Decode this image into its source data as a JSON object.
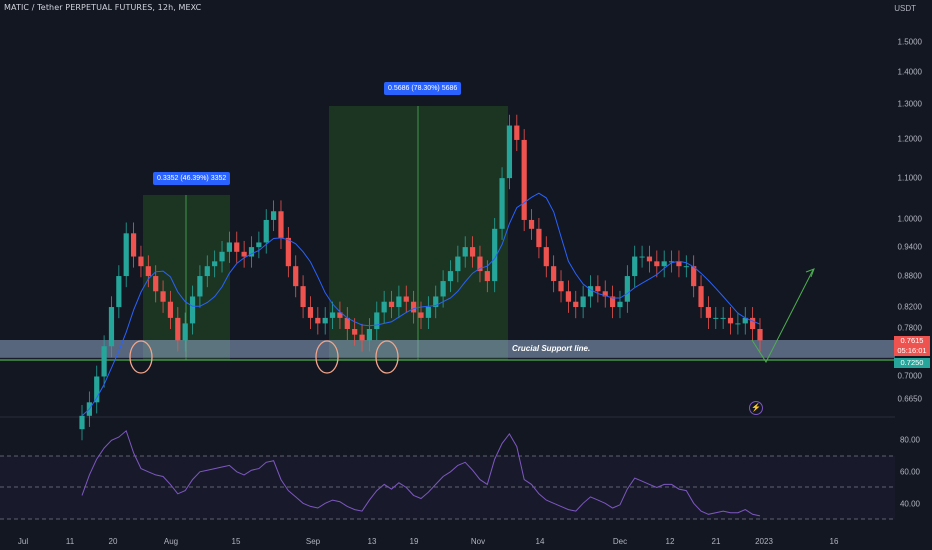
{
  "header": {
    "title": "MATIC / Tether PERPETUAL FUTURES, 12h, MEXC",
    "currency": "USDT"
  },
  "price_axis": {
    "labels": [
      "1.5000",
      "1.4000",
      "1.3000",
      "1.2000",
      "1.1000",
      "1.0000",
      "0.9400",
      "0.8800",
      "0.8200",
      "0.7800",
      "0.7000",
      "0.6650"
    ],
    "current_price": "0.7615",
    "countdown": "05:16:01",
    "support_price": "0.7250"
  },
  "time_axis": {
    "labels": [
      "Jul",
      "11",
      "20",
      "Aug",
      "15",
      "Sep",
      "13",
      "19",
      "Nov",
      "14",
      "Dec",
      "12",
      "21",
      "2023",
      "16"
    ]
  },
  "annotations": {
    "measure_1": "0.3352 (46.39%) 3352",
    "measure_2": "0.5686 (78.30%) 5686",
    "support_line": "Crucial Support line."
  },
  "rsi_axis": {
    "labels": [
      "80.00",
      "60.00",
      "40.00"
    ]
  },
  "colors": {
    "background": "#131722",
    "up": "#26a69a",
    "down": "#ef5350",
    "ma": "#2962ff",
    "rsi": "#7e57c2",
    "support_zone": "#8fa8c8",
    "measure_zone": "#1e3b22",
    "circle": "#f4a58a",
    "projection": "#4caf50"
  },
  "chart_data": [
    {
      "type": "candlestick",
      "title": "MATIC / Tether PERPETUAL FUTURES, 12h, MEXC",
      "ylim": [
        0.64,
        1.6
      ],
      "yscale": "log",
      "x_ticks": [
        "Jul",
        "11",
        "20",
        "Aug",
        "15",
        "Sep",
        "13",
        "19",
        "Nov",
        "14",
        "Dec",
        "12",
        "21",
        "2023",
        "16"
      ],
      "close_series": [
        0.64,
        0.66,
        0.7,
        0.75,
        0.82,
        0.88,
        0.97,
        0.92,
        0.9,
        0.88,
        0.85,
        0.83,
        0.8,
        0.76,
        0.79,
        0.84,
        0.88,
        0.9,
        0.91,
        0.93,
        0.95,
        0.93,
        0.92,
        0.94,
        0.95,
        1.0,
        1.02,
        0.96,
        0.9,
        0.86,
        0.82,
        0.8,
        0.79,
        0.8,
        0.81,
        0.8,
        0.78,
        0.77,
        0.76,
        0.78,
        0.81,
        0.83,
        0.82,
        0.84,
        0.83,
        0.81,
        0.8,
        0.82,
        0.84,
        0.87,
        0.89,
        0.92,
        0.94,
        0.92,
        0.89,
        0.87,
        0.98,
        1.1,
        1.24,
        1.2,
        1.0,
        0.98,
        0.94,
        0.9,
        0.87,
        0.85,
        0.83,
        0.82,
        0.84,
        0.86,
        0.85,
        0.84,
        0.82,
        0.83,
        0.88,
        0.92,
        0.92,
        0.91,
        0.9,
        0.91,
        0.91,
        0.9,
        0.9,
        0.86,
        0.82,
        0.8,
        0.8,
        0.8,
        0.79,
        0.79,
        0.8,
        0.78,
        0.76
      ],
      "moving_average": "on",
      "grid": false
    },
    {
      "type": "line",
      "title": "RSI",
      "ylim": [
        30,
        90
      ],
      "bands": [
        70,
        50,
        30
      ],
      "values": [
        45,
        58,
        68,
        75,
        80,
        82,
        86,
        72,
        62,
        60,
        58,
        57,
        52,
        46,
        48,
        55,
        60,
        61,
        62,
        63,
        64,
        60,
        58,
        61,
        62,
        66,
        67,
        55,
        48,
        44,
        40,
        38,
        37,
        40,
        42,
        41,
        38,
        36,
        35,
        42,
        48,
        52,
        49,
        53,
        50,
        45,
        43,
        47,
        52,
        57,
        60,
        64,
        66,
        61,
        55,
        52,
        68,
        78,
        84,
        76,
        55,
        52,
        46,
        42,
        40,
        38,
        36,
        35,
        40,
        44,
        42,
        40,
        37,
        39,
        49,
        56,
        54,
        52,
        50,
        52,
        52,
        49,
        48,
        40,
        35,
        33,
        34,
        35,
        34,
        34,
        36,
        33,
        32
      ]
    }
  ]
}
